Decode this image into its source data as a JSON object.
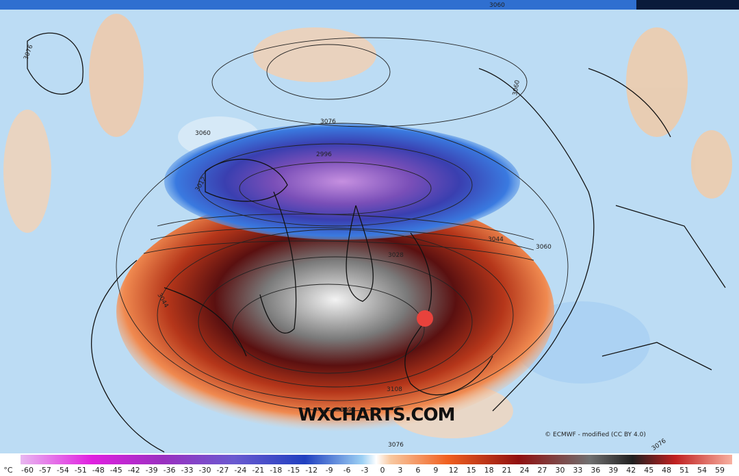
{
  "contour_labels": [
    "3076",
    "3060",
    "3076",
    "3060",
    "3060",
    "2996",
    "3012",
    "3044",
    "3028",
    "3044",
    "3060",
    "3108",
    "3092",
    "3076",
    "3076"
  ],
  "watermark": "WXCHARTS.COM",
  "credit": "© ECMWF - modified (CC BY 4.0)",
  "legend": {
    "unit": "°C",
    "labels": [
      "-60",
      "-57",
      "-54",
      "-51",
      "-48",
      "-45",
      "-42",
      "-39",
      "-36",
      "-33",
      "-30",
      "-27",
      "-24",
      "-21",
      "-18",
      "-15",
      "-12",
      "-9",
      "-6",
      "-3",
      "0",
      "3",
      "6",
      "9",
      "12",
      "15",
      "18",
      "21",
      "24",
      "27",
      "30",
      "33",
      "36",
      "39",
      "42",
      "45",
      "48",
      "51",
      "54",
      "59"
    ]
  }
}
